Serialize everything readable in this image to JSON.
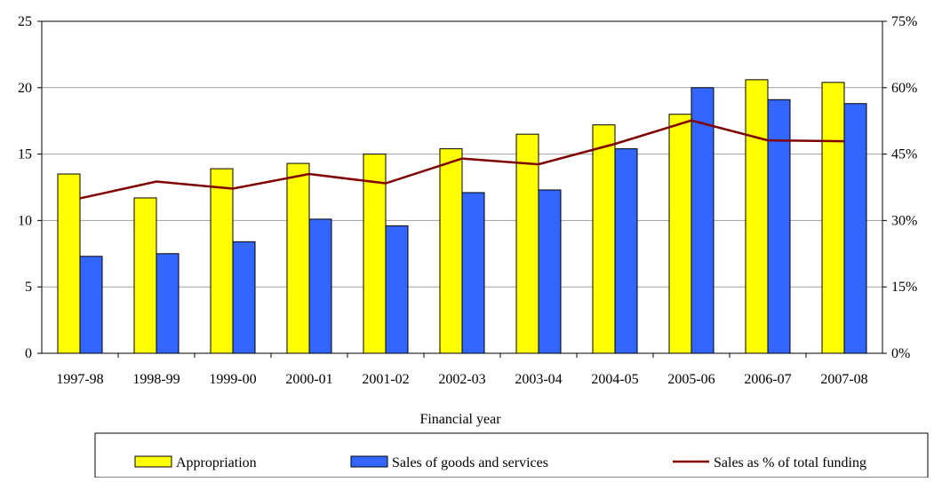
{
  "chart_data": {
    "type": "bar",
    "xlabel": "Financial year",
    "ylabel": "",
    "ylabel_right": "",
    "categories": [
      "1997-98",
      "1998-99",
      "1999-00",
      "2000-01",
      "2001-02",
      "2002-03",
      "2003-04",
      "2004-05",
      "2005-06",
      "2006-07",
      "2007-08"
    ],
    "ylim": [
      0,
      25
    ],
    "yticks": [
      "0",
      "5",
      "10",
      "15",
      "20",
      "25"
    ],
    "y2lim": [
      0,
      75
    ],
    "y2ticks": [
      "0%",
      "15%",
      "30%",
      "45%",
      "60%",
      "75%"
    ],
    "grid": "horizontal",
    "legend_position": "bottom",
    "series": [
      {
        "name": "Appropriation",
        "kind": "bar",
        "axis": "left",
        "color": "#ffff00",
        "values": [
          13.5,
          11.7,
          13.9,
          14.3,
          15.0,
          15.4,
          16.5,
          17.2,
          18.0,
          20.6,
          20.4
        ]
      },
      {
        "name": "Sales of goods and services",
        "kind": "bar",
        "axis": "left",
        "color": "#3366ff",
        "values": [
          7.3,
          7.5,
          8.4,
          10.1,
          9.6,
          12.1,
          12.3,
          15.4,
          20.0,
          19.1,
          18.8
        ]
      },
      {
        "name": "Sales as % of total funding",
        "kind": "line",
        "axis": "right",
        "color": "#800000",
        "values": [
          35.0,
          38.8,
          37.2,
          40.5,
          38.4,
          44.0,
          42.7,
          47.3,
          52.6,
          48.1,
          47.9
        ]
      }
    ]
  }
}
